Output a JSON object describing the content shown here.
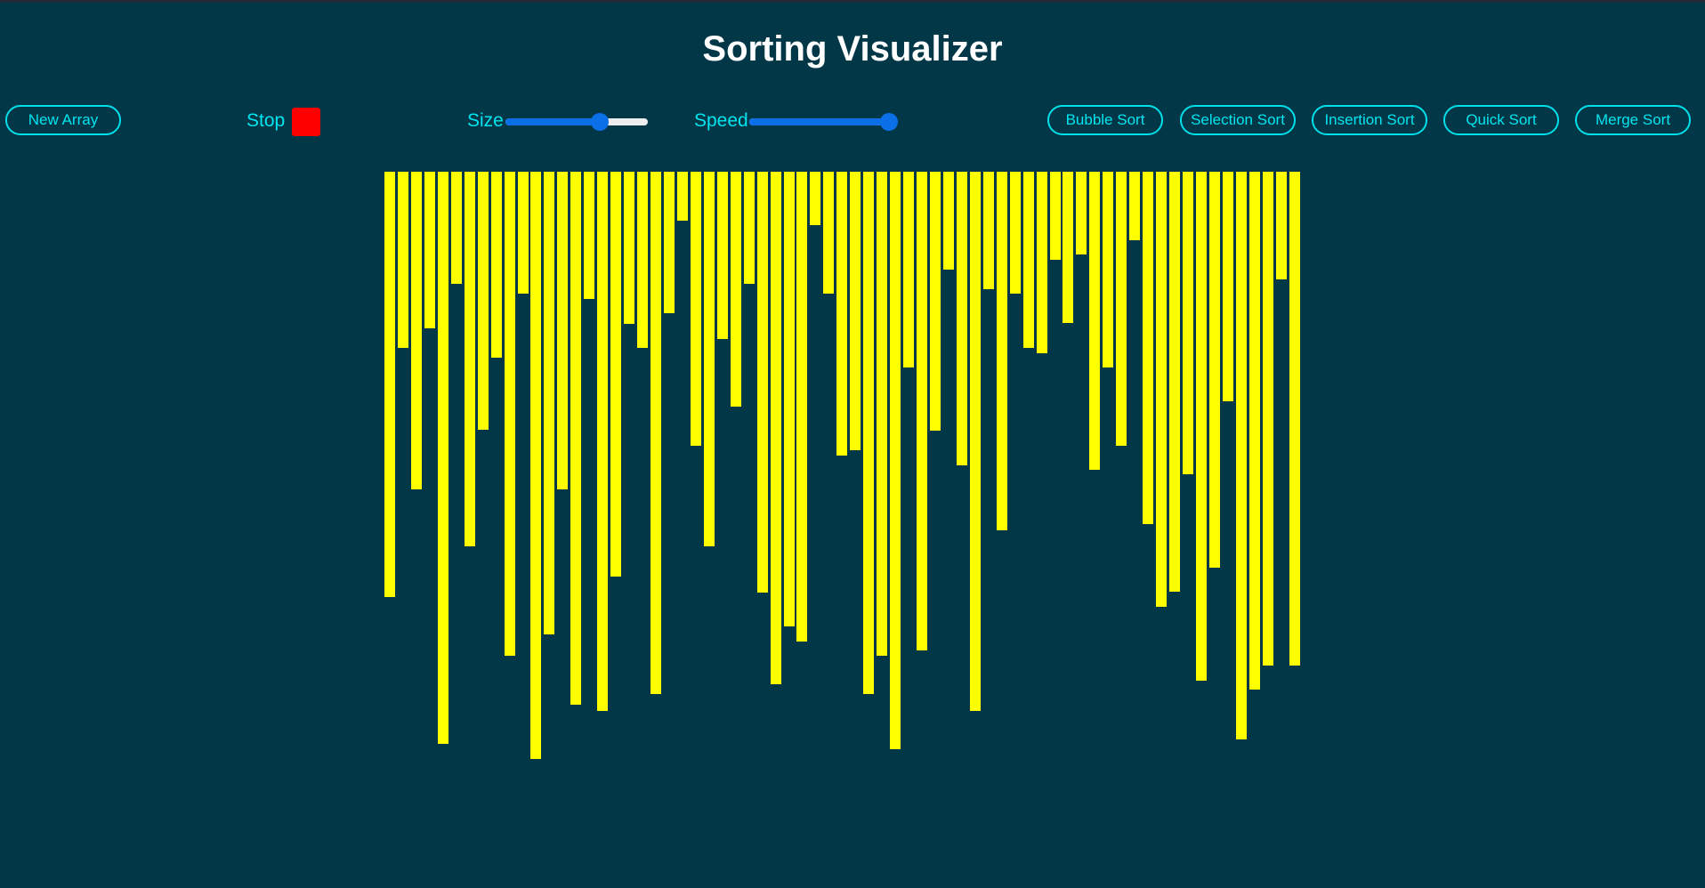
{
  "header": {
    "title": "Sorting Visualizer"
  },
  "toolbar": {
    "new_array_label": "New Array",
    "stop_label": "Stop",
    "size_label": "Size",
    "speed_label": "Speed",
    "size_value": 0.66,
    "speed_value": 0.98,
    "algorithms": [
      "Bubble Sort",
      "Selection Sort",
      "Insertion Sort",
      "Quick Sort",
      "Merge Sort"
    ]
  },
  "colors": {
    "background": "#013747",
    "bar": "#ffff00",
    "accent": "#00e5ef",
    "stop": "#ff0000",
    "slider": "#0b6fe8"
  },
  "array": {
    "values": [
      478,
      198,
      357,
      176,
      643,
      126,
      421,
      290,
      209,
      544,
      137,
      660,
      520,
      357,
      599,
      143,
      606,
      455,
      171,
      198,
      587,
      159,
      55,
      308,
      421,
      188,
      264,
      126,
      473,
      576,
      511,
      528,
      60,
      137,
      319,
      313,
      587,
      544,
      649,
      220,
      538,
      291,
      110,
      330,
      606,
      132,
      403,
      137,
      198,
      204,
      99,
      170,
      93,
      335,
      220,
      308,
      77,
      396,
      489,
      472,
      340,
      572,
      445,
      258,
      638,
      582,
      555,
      121,
      555
    ]
  }
}
